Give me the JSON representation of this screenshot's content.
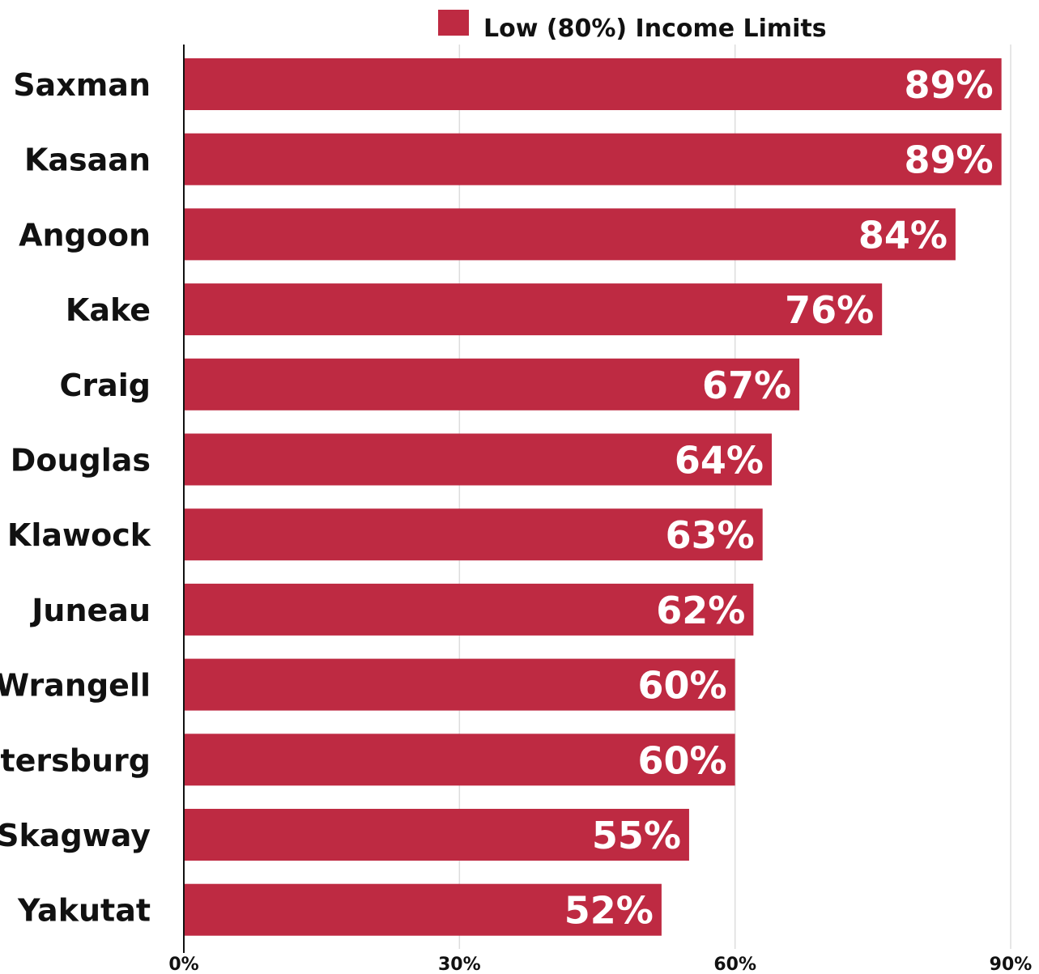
{
  "chart_data": {
    "type": "bar",
    "orientation": "horizontal",
    "categories": [
      "Saxman",
      "Kasaan",
      "Angoon",
      "Kake",
      "Craig",
      "Douglas",
      "Klawock",
      "Juneau",
      "Wrangell",
      "Petersburg",
      "Skagway",
      "Yakutat"
    ],
    "series": [
      {
        "name": "Low (80%) Income Limits",
        "values": [
          89,
          89,
          84,
          76,
          67,
          64,
          63,
          62,
          60,
          60,
          55,
          52
        ],
        "value_labels": [
          "89%",
          "89%",
          "84%",
          "76%",
          "67%",
          "64%",
          "63%",
          "62%",
          "60%",
          "60%",
          "55%",
          "52%"
        ],
        "color": "#be2a42"
      }
    ],
    "xlim": [
      0,
      90
    ],
    "xticks": [
      0,
      30,
      60,
      90
    ],
    "xtick_labels": [
      "0%",
      "30%",
      "60%",
      "90%"
    ],
    "grid": true,
    "legend_position": "top-center",
    "title": "",
    "xlabel": "",
    "ylabel": ""
  },
  "colors": {
    "bar": "#be2a42",
    "grid": "#dddddd",
    "axis": "#111111"
  }
}
